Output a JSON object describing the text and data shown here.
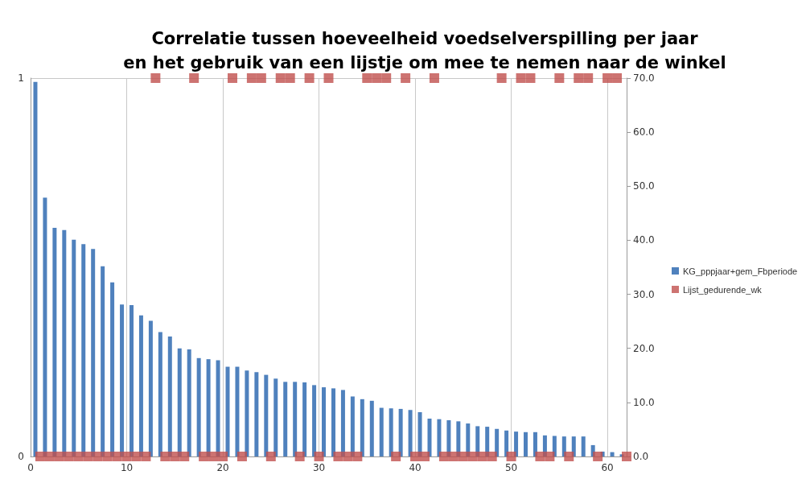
{
  "chart_data": {
    "type": "scatter",
    "title": "Correlatie tussen hoeveelheid voedselverspilling per jaar\nen het gebruik van een lijstje om mee te nemen naar de winkel",
    "xlim": [
      0,
      62
    ],
    "xticks": [
      0,
      10,
      20,
      30,
      40,
      50,
      60
    ],
    "ylim": [
      0,
      1
    ],
    "yticks": [
      0,
      1
    ],
    "y2lim": [
      0,
      70
    ],
    "y2ticks": [
      {
        "value": 0,
        "label": "0.0"
      },
      {
        "value": 10,
        "label": "10.0"
      },
      {
        "value": 20,
        "label": "20.0"
      },
      {
        "value": 30,
        "label": "30.0"
      },
      {
        "value": 40,
        "label": "40.0"
      },
      {
        "value": 50,
        "label": "50.0"
      },
      {
        "value": 60,
        "label": "60.0"
      },
      {
        "value": 70,
        "label": "70.0"
      }
    ],
    "grid": true,
    "legend": "right",
    "marker": "square",
    "series": [
      {
        "name": "KG_pppjaar+gem_Fbperiode",
        "type": "bar",
        "axis": "y2",
        "color": "#4f81bd",
        "x": [
          0.5,
          1.5,
          2.5,
          3.5,
          4.5,
          5.5,
          6.5,
          7.5,
          8.5,
          9.5,
          10.5,
          11.5,
          12.5,
          13.5,
          14.5,
          15.5,
          16.5,
          17.5,
          18.5,
          19.5,
          20.5,
          21.5,
          22.5,
          23.5,
          24.5,
          25.5,
          26.5,
          27.5,
          28.5,
          29.5,
          30.5,
          31.5,
          32.5,
          33.5,
          34.5,
          35.5,
          36.5,
          37.5,
          38.5,
          39.5,
          40.5,
          41.5,
          42.5,
          43.5,
          44.5,
          45.5,
          46.5,
          47.5,
          48.5,
          49.5,
          50.5,
          51.5,
          52.5,
          53.5,
          54.5,
          55.5,
          56.5,
          57.5,
          58.5,
          59.5,
          60.5,
          61.5
        ],
        "values": [
          69.3,
          47.9,
          42.3,
          41.9,
          40.1,
          39.3,
          38.4,
          35.2,
          32.2,
          28.1,
          28.0,
          26.1,
          25.1,
          23.0,
          22.2,
          20.0,
          19.8,
          18.2,
          18.0,
          17.8,
          16.6,
          16.6,
          15.9,
          15.6,
          15.1,
          14.4,
          13.8,
          13.8,
          13.7,
          13.2,
          12.8,
          12.6,
          12.3,
          11.1,
          10.6,
          10.3,
          9.0,
          8.9,
          8.8,
          8.6,
          8.2,
          7.0,
          6.9,
          6.7,
          6.5,
          6.1,
          5.6,
          5.5,
          5.1,
          4.8,
          4.6,
          4.5,
          4.5,
          3.9,
          3.8,
          3.7,
          3.7,
          3.7,
          2.1,
          0.9,
          0.8,
          0.4
        ]
      },
      {
        "name": "Lijst_gedurende_wk",
        "color": "#c0504d",
        "x": [
          1,
          2,
          3,
          4,
          5,
          6,
          7,
          8,
          9,
          10,
          11,
          12,
          13,
          14,
          15,
          16,
          17,
          18,
          19,
          20,
          21,
          22,
          23,
          24,
          25,
          26,
          27,
          28,
          29,
          30,
          31,
          32,
          33,
          34,
          35,
          36,
          37,
          38,
          39,
          40,
          41,
          42,
          43,
          44,
          45,
          46,
          47,
          48,
          49,
          50,
          51,
          52,
          53,
          54,
          55,
          56,
          57,
          58,
          59,
          60,
          61,
          62
        ],
        "values": [
          0,
          0,
          0,
          0,
          0,
          0,
          0,
          0,
          0,
          0,
          0,
          0,
          1,
          0,
          0,
          0,
          1,
          0,
          0,
          0,
          1,
          0,
          1,
          1,
          0,
          1,
          1,
          0,
          1,
          0,
          1,
          0,
          0,
          0,
          1,
          1,
          1,
          0,
          1,
          0,
          0,
          1,
          0,
          0,
          0,
          0,
          0,
          0,
          1,
          0,
          1,
          1,
          0,
          0,
          1,
          0,
          1,
          1,
          0,
          1,
          1,
          0
        ]
      }
    ]
  }
}
